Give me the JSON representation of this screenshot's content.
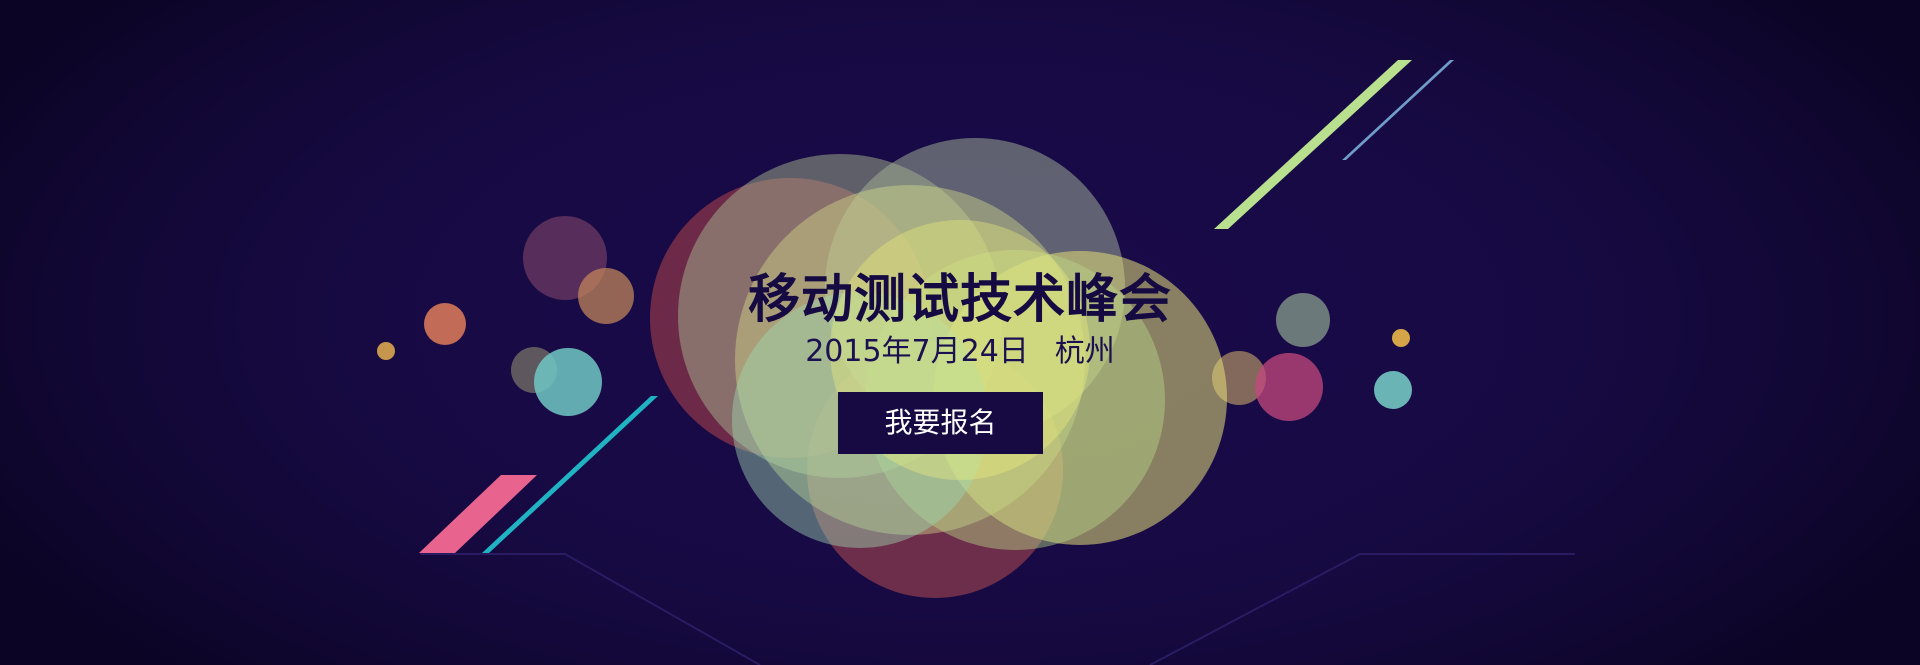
{
  "banner": {
    "title": "移动测试技术峰会",
    "date": "2015年7月24日",
    "city": "杭州",
    "signup_label": "我要报名"
  },
  "colors": {
    "background": "#170a44",
    "title_text": "#160a42",
    "button_background": "#170a42",
    "button_text": "#ffffff",
    "accent_green": "#b8e08e",
    "accent_cyan": "#1fb3c4",
    "accent_pink": "#e8648e",
    "accent_yellow": "#eef07c"
  }
}
